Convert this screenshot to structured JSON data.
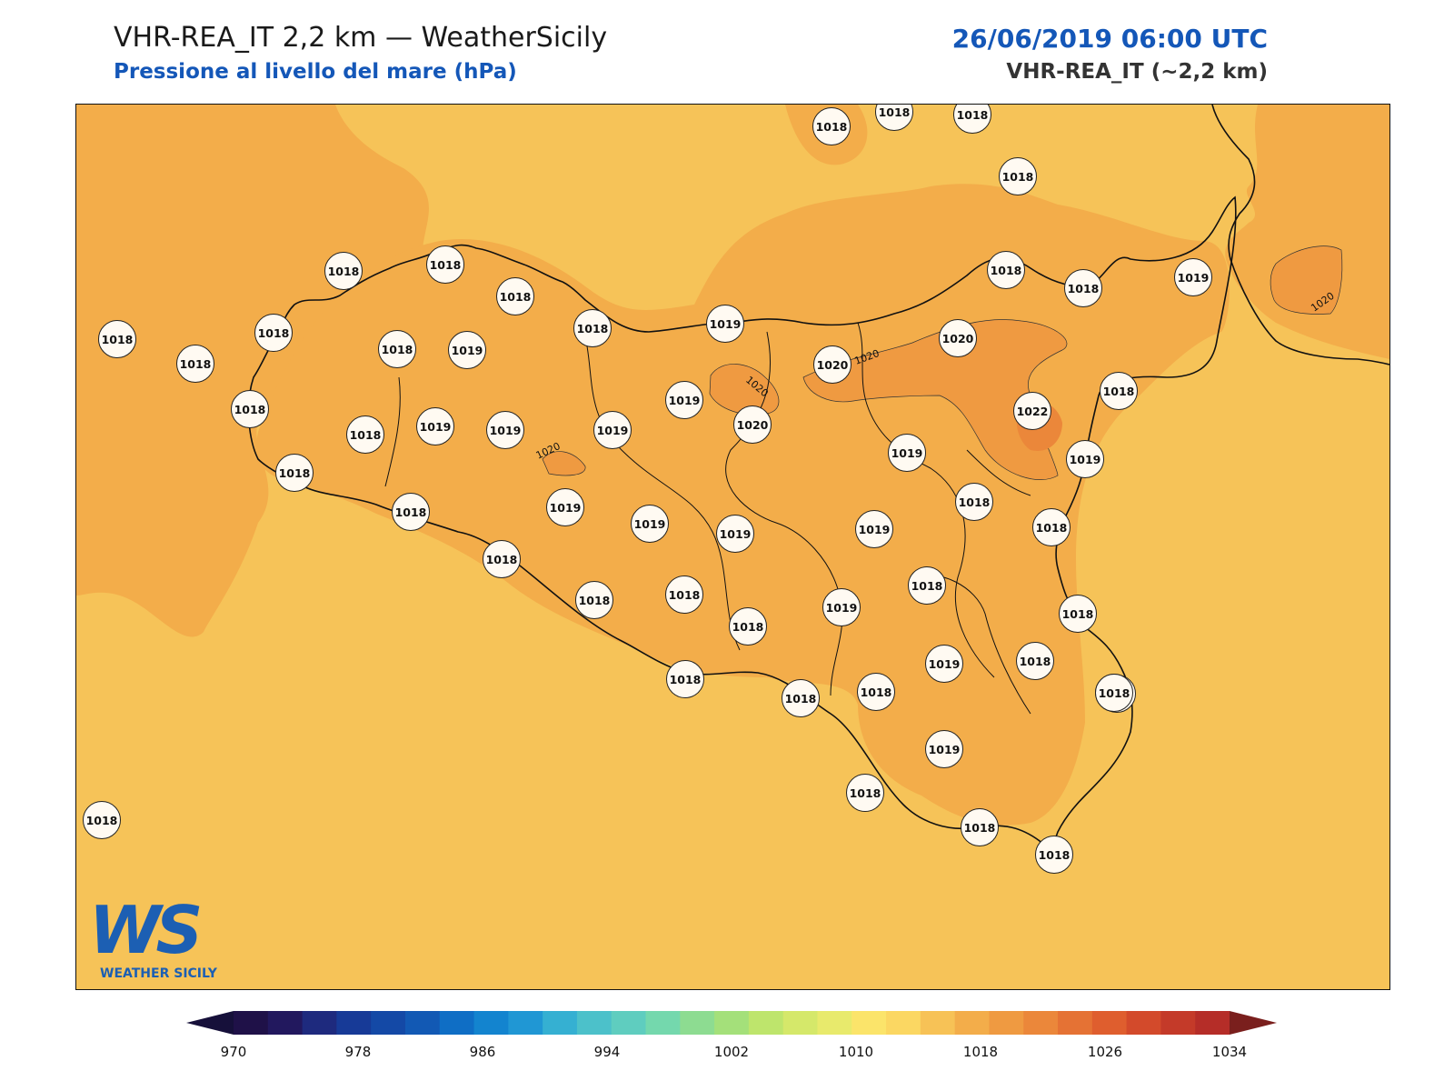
{
  "header": {
    "title": "VHR-REA_IT 2,2 km — WeatherSicily",
    "subtitle": "Pressione al livello del mare (hPa)",
    "datetime": "26/06/2019 06:00 UTC",
    "model": "VHR-REA_IT (~2,2 km)"
  },
  "logo": {
    "mark": "WS",
    "text": "WEATHER SICILY"
  },
  "contour_label": "1020",
  "stations": [
    {
      "value": "1018"
    },
    {
      "value": "1018"
    },
    {
      "value": "1018"
    },
    {
      "value": "1018"
    },
    {
      "value": "1018"
    },
    {
      "value": "1018"
    },
    {
      "value": "1018"
    },
    {
      "value": "1018"
    },
    {
      "value": "1018"
    },
    {
      "value": "1018"
    },
    {
      "value": "1018"
    },
    {
      "value": "1018"
    },
    {
      "value": "1018"
    },
    {
      "value": "1019"
    },
    {
      "value": "1019"
    },
    {
      "value": "1018"
    },
    {
      "value": "1018"
    },
    {
      "value": "1019"
    },
    {
      "value": "1020"
    },
    {
      "value": "1019"
    },
    {
      "value": "1018"
    },
    {
      "value": "1020"
    },
    {
      "value": "1019"
    },
    {
      "value": "1020"
    },
    {
      "value": "1018"
    },
    {
      "value": "1022"
    },
    {
      "value": "1018"
    },
    {
      "value": "1019"
    },
    {
      "value": "1019"
    },
    {
      "value": "1019"
    },
    {
      "value": "1019"
    },
    {
      "value": "1018"
    },
    {
      "value": "1019"
    },
    {
      "value": "1019"
    },
    {
      "value": "1018"
    },
    {
      "value": "1018"
    },
    {
      "value": "1018"
    },
    {
      "value": "1018"
    },
    {
      "value": "1019"
    },
    {
      "value": "1019"
    },
    {
      "value": "1018"
    },
    {
      "value": "1018"
    },
    {
      "value": "1018"
    },
    {
      "value": "1018"
    },
    {
      "value": "1018"
    },
    {
      "value": "1018"
    },
    {
      "value": "1019"
    },
    {
      "value": "1018"
    },
    {
      "value": "1019"
    },
    {
      "value": "1018"
    },
    {
      "value": "1018"
    },
    {
      "value": "1018"
    },
    {
      "value": "1018"
    },
    {
      "value": "1018"
    },
    {
      "value": "1018"
    },
    {
      "value": "1019"
    },
    {
      "value": "1018"
    },
    {
      "value": "1018"
    }
  ],
  "colorbar": {
    "ticks": [
      "970",
      "978",
      "986",
      "994",
      "1002",
      "1010",
      "1018",
      "1026",
      "1034"
    ],
    "colors": [
      "#1f1148",
      "#22185e",
      "#1e2a7e",
      "#173a97",
      "#1449a6",
      "#1259b4",
      "#0f6ec5",
      "#1384cf",
      "#2097d4",
      "#35b0d2",
      "#4cc1ca",
      "#5fcdbf",
      "#74d8ad",
      "#8ddc91",
      "#a4e07a",
      "#bee56c",
      "#d5e86a",
      "#e8ea6c",
      "#fbe46a",
      "#fbd762",
      "#f7c256",
      "#f3ad4a",
      "#ef9a41",
      "#eb873a",
      "#e57234",
      "#df5e2e",
      "#d34a2b",
      "#c43a29",
      "#b52d28"
    ],
    "under_color": "#16103a",
    "over_color": "#7a1f1d"
  }
}
